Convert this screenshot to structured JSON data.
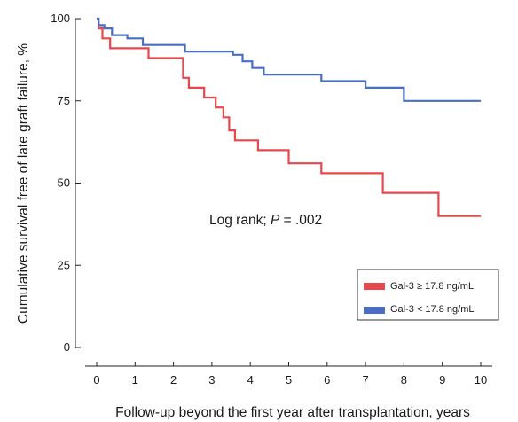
{
  "chart_data": {
    "type": "line",
    "step": true,
    "xlabel": "Follow-up beyond the first year after transplantation, years",
    "ylabel": "Cumulative survival free of late graft failure, %",
    "xlim": [
      0,
      10
    ],
    "ylim": [
      0,
      100
    ],
    "xticks": [
      0,
      1,
      2,
      3,
      4,
      5,
      6,
      7,
      8,
      9,
      10
    ],
    "yticks": [
      0,
      25,
      50,
      75,
      100
    ],
    "xtick_labels": [
      "0",
      "1",
      "2",
      "3",
      "4",
      "5",
      "6",
      "7",
      "8",
      "9",
      "10"
    ],
    "ytick_labels": [
      "0",
      "25",
      "50",
      "75",
      "100"
    ],
    "annotation": {
      "prefix": "Log rank; ",
      "p_symbol": "P",
      "suffix": " = .002"
    },
    "legend": {
      "position": "lower-right"
    },
    "series": [
      {
        "name": "Gal-3 ≥ 17.8 ng/mL",
        "color": "#e8474c",
        "x": [
          0,
          0.05,
          0.15,
          0.35,
          1.35,
          2.25,
          2.4,
          2.8,
          3.1,
          3.3,
          3.45,
          3.6,
          3.7,
          3.85,
          4.2,
          5.0,
          5.85,
          7.45,
          8.9,
          10.0
        ],
        "y": [
          100,
          97,
          94,
          91,
          88,
          82,
          79,
          76,
          73,
          70,
          66,
          63,
          63,
          63,
          60,
          56,
          53,
          47,
          40,
          40
        ]
      },
      {
        "name": "Gal-3 < 17.8 ng/mL",
        "color": "#4a6fc2",
        "x": [
          0,
          0.05,
          0.2,
          0.4,
          0.8,
          1.2,
          2.3,
          3.55,
          3.8,
          4.05,
          4.35,
          5.85,
          7.0,
          8.0,
          10.0
        ],
        "y": [
          100,
          98,
          97,
          95,
          94,
          92,
          90,
          89,
          87,
          85,
          83,
          81,
          79,
          75,
          75
        ]
      }
    ]
  }
}
